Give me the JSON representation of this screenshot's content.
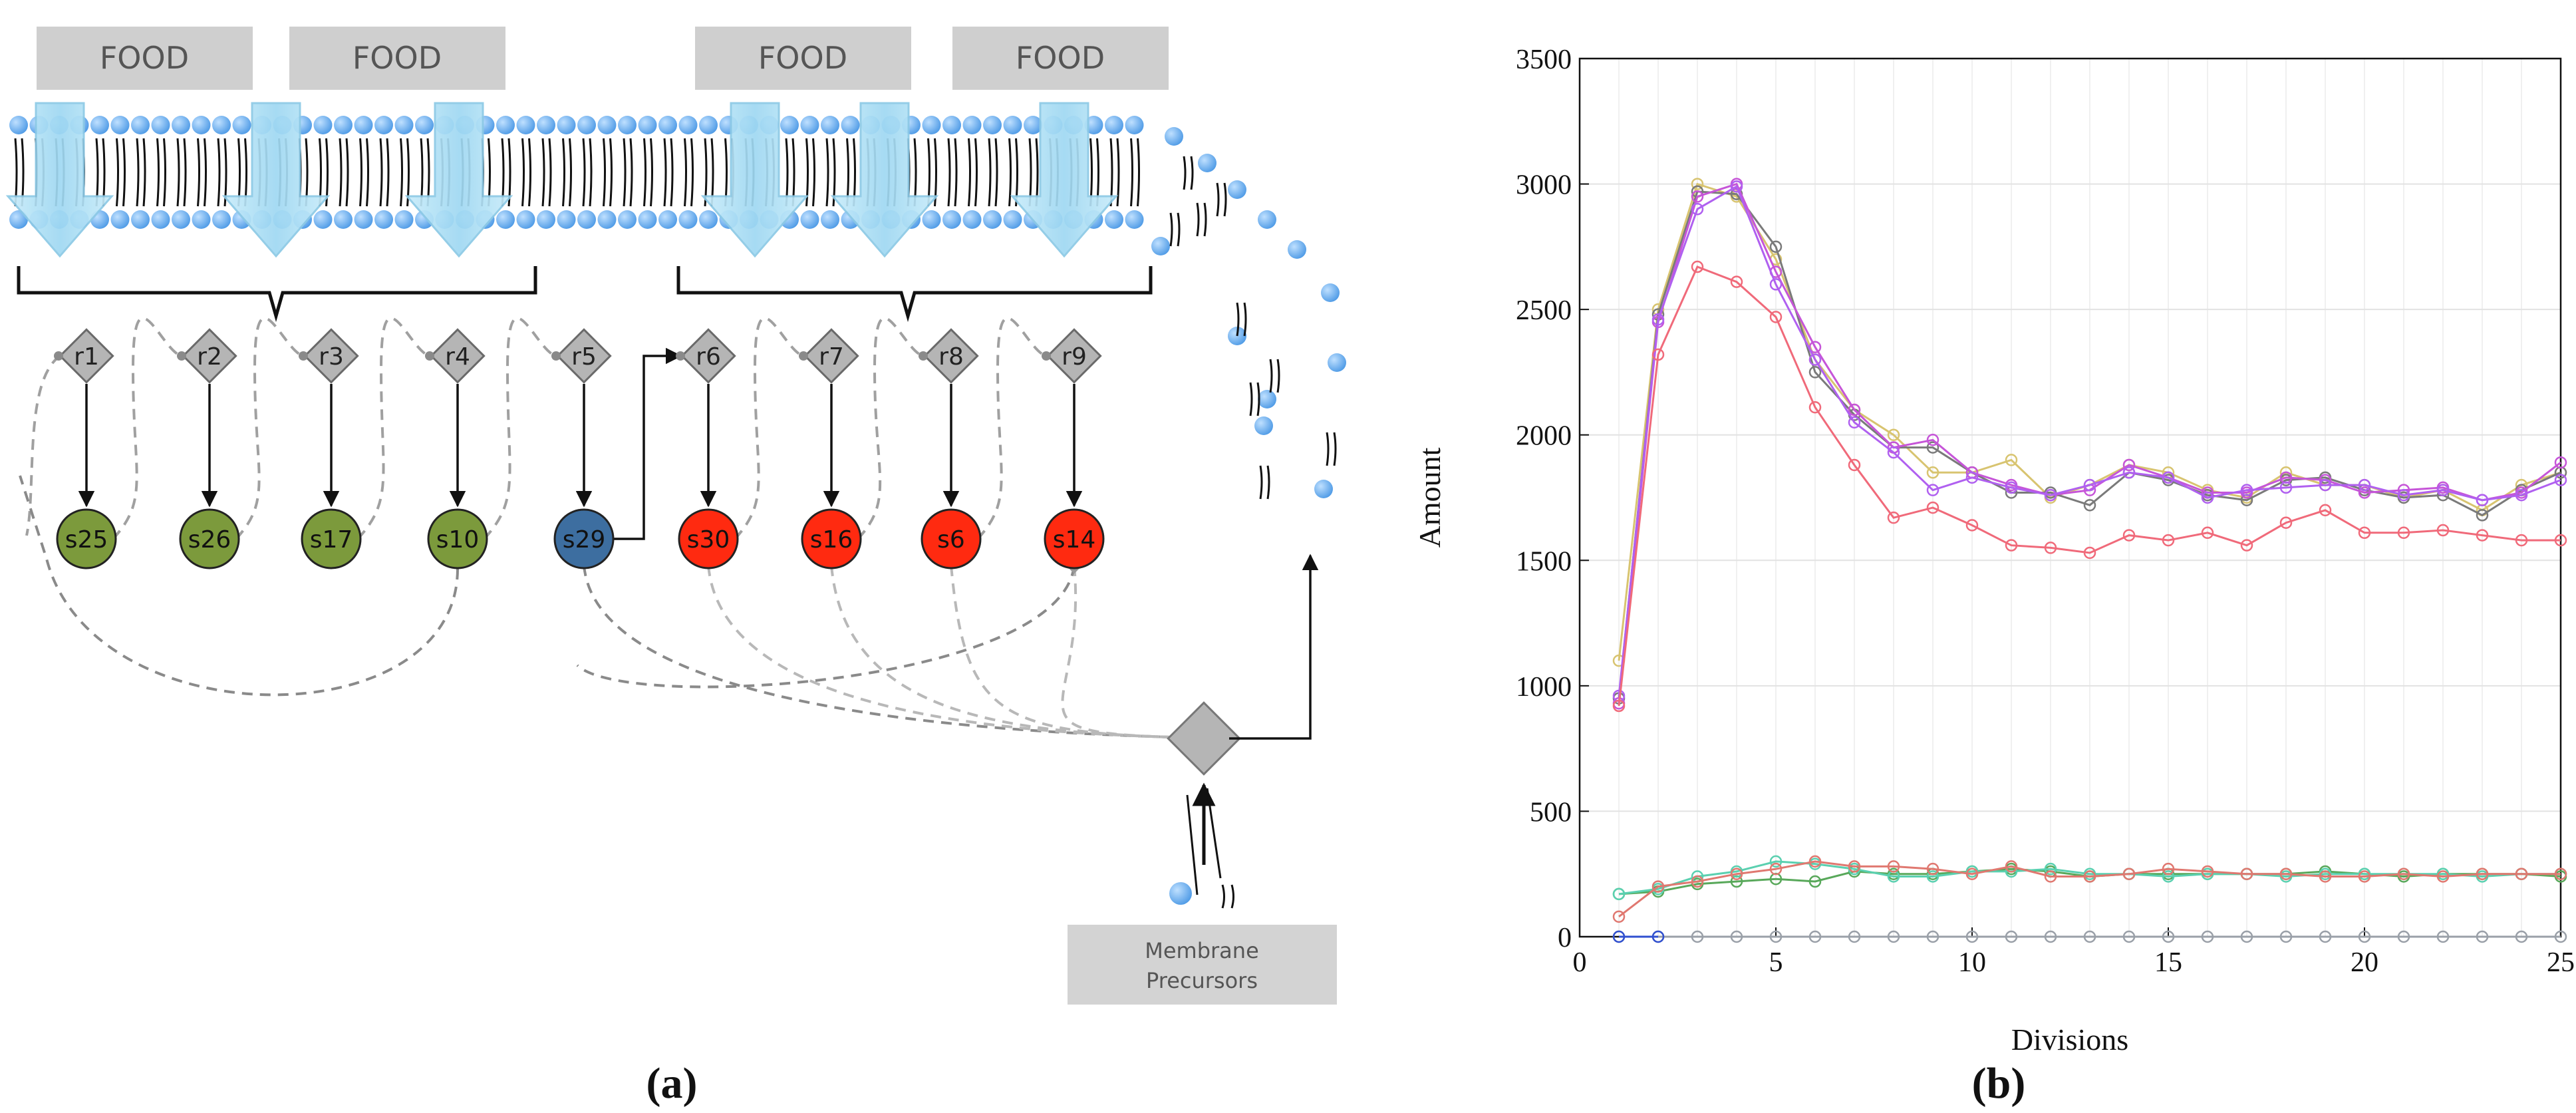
{
  "panel_a": {
    "panel_label": "(a)",
    "food_labels": [
      "FOOD",
      "FOOD",
      "FOOD",
      "FOOD"
    ],
    "reactions": [
      "r1",
      "r2",
      "r3",
      "r4",
      "r5",
      "r6",
      "r7",
      "r8",
      "r9"
    ],
    "species": [
      {
        "label": "s25",
        "color": "#7c9a3c"
      },
      {
        "label": "s26",
        "color": "#7c9a3c"
      },
      {
        "label": "s17",
        "color": "#7c9a3c"
      },
      {
        "label": "s10",
        "color": "#7c9a3c"
      },
      {
        "label": "s29",
        "color": "#3d6ea0"
      },
      {
        "label": "s30",
        "color": "#ff2a10"
      },
      {
        "label": "s16",
        "color": "#ff2a10"
      },
      {
        "label": "s6",
        "color": "#ff2a10"
      },
      {
        "label": "s14",
        "color": "#ff2a10"
      }
    ],
    "precursor_box": {
      "line1": "Membrane",
      "line2": "Precursors"
    },
    "colors": {
      "food_box": "#cfcfcf",
      "lipid_head": "#5aa7ee",
      "arrow_fill": "#a7dcf4",
      "reaction_fill": "#b5b5b5",
      "dashed": "#999999"
    }
  },
  "panel_b": {
    "panel_label": "(b)",
    "chart_data": {
      "type": "line",
      "title": "",
      "xlabel": "Divisions",
      "ylabel": "Amount",
      "xlim": [
        0,
        25
      ],
      "ylim": [
        0,
        3500
      ],
      "xticks": [
        0,
        5,
        10,
        15,
        20,
        25
      ],
      "yticks": [
        0,
        500,
        1000,
        1500,
        2000,
        2500,
        3000,
        3500
      ],
      "grid": true,
      "x": [
        1,
        2,
        3,
        4,
        5,
        6,
        7,
        8,
        9,
        10,
        11,
        12,
        13,
        14,
        15,
        16,
        17,
        18,
        19,
        20,
        21,
        22,
        23,
        24,
        25
      ],
      "series": [
        {
          "name": "yellow",
          "color": "#d8c470",
          "values": [
            1100,
            2500,
            3000,
            2950,
            2700,
            2300,
            2100,
            2000,
            1850,
            1850,
            1900,
            1750,
            1800,
            1880,
            1850,
            1780,
            1750,
            1850,
            1800,
            1800,
            1750,
            1780,
            1700,
            1800,
            1850
          ]
        },
        {
          "name": "gray",
          "color": "#7a7a7a",
          "values": [
            950,
            2480,
            2970,
            2960,
            2750,
            2250,
            2080,
            1950,
            1950,
            1850,
            1770,
            1770,
            1720,
            1850,
            1820,
            1760,
            1740,
            1820,
            1830,
            1780,
            1750,
            1760,
            1680,
            1780,
            1850
          ]
        },
        {
          "name": "magenta",
          "color": "#c655d8",
          "values": [
            930,
            2450,
            2950,
            3000,
            2650,
            2350,
            2100,
            1950,
            1980,
            1850,
            1800,
            1760,
            1780,
            1880,
            1830,
            1770,
            1770,
            1830,
            1820,
            1770,
            1780,
            1790,
            1740,
            1770,
            1890
          ]
        },
        {
          "name": "violet",
          "color": "#b060f0",
          "values": [
            960,
            2460,
            2900,
            2990,
            2600,
            2300,
            2050,
            1930,
            1780,
            1830,
            1790,
            1760,
            1800,
            1850,
            1830,
            1750,
            1780,
            1790,
            1800,
            1800,
            1760,
            1780,
            1740,
            1760,
            1820
          ]
        },
        {
          "name": "pink",
          "color": "#f06a7a",
          "values": [
            920,
            2320,
            2670,
            2610,
            2470,
            2110,
            1880,
            1670,
            1710,
            1640,
            1560,
            1550,
            1530,
            1600,
            1580,
            1610,
            1560,
            1650,
            1700,
            1610,
            1610,
            1620,
            1600,
            1580,
            1580
          ]
        },
        {
          "name": "green",
          "color": "#58a85a",
          "values": [
            170,
            180,
            210,
            220,
            230,
            220,
            260,
            250,
            250,
            260,
            270,
            260,
            240,
            250,
            250,
            250,
            250,
            250,
            260,
            250,
            240,
            250,
            250,
            250,
            240
          ]
        },
        {
          "name": "teal",
          "color": "#5ad0b0",
          "values": [
            170,
            190,
            240,
            260,
            300,
            290,
            270,
            240,
            240,
            260,
            260,
            270,
            250,
            250,
            240,
            250,
            250,
            240,
            250,
            250,
            250,
            250,
            240,
            250,
            250
          ]
        },
        {
          "name": "salmon",
          "color": "#e07870",
          "values": [
            80,
            200,
            220,
            250,
            270,
            300,
            280,
            280,
            270,
            250,
            280,
            240,
            240,
            250,
            270,
            260,
            250,
            250,
            240,
            240,
            250,
            240,
            250,
            250,
            250
          ]
        },
        {
          "name": "lightgray",
          "color": "#9aa0a8",
          "values": [
            0,
            0,
            0,
            0,
            0,
            0,
            0,
            0,
            0,
            0,
            0,
            0,
            0,
            0,
            0,
            0,
            0,
            0,
            0,
            0,
            0,
            0,
            0,
            0,
            0
          ]
        },
        {
          "name": "blue",
          "color": "#3050d0",
          "values": [
            0,
            0,
            null,
            null,
            null,
            null,
            null,
            null,
            null,
            null,
            null,
            null,
            null,
            null,
            null,
            null,
            null,
            null,
            null,
            null,
            null,
            null,
            null,
            null,
            null
          ]
        }
      ]
    }
  }
}
